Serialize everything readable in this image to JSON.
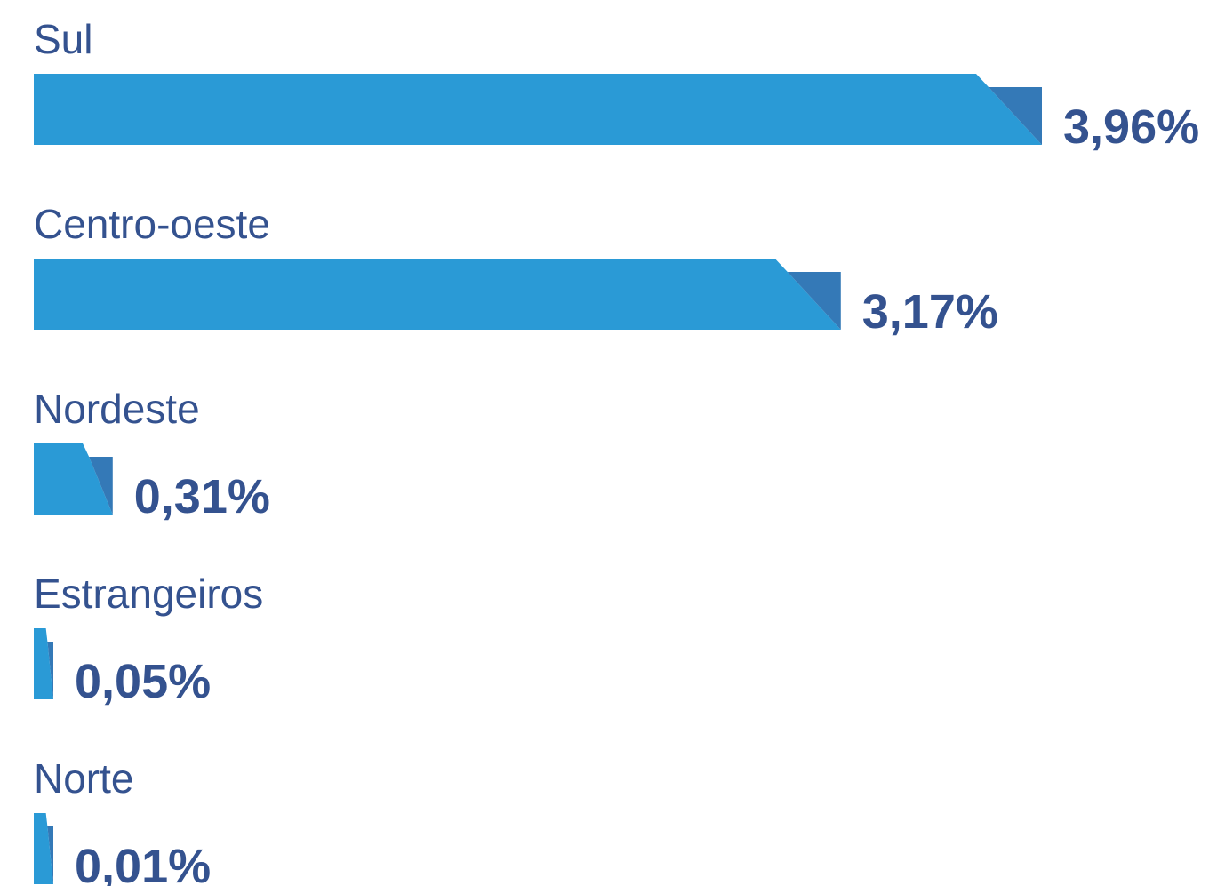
{
  "chart_data": {
    "type": "bar",
    "orientation": "horizontal",
    "categories": [
      "Sul",
      "Centro-oeste",
      "Nordeste",
      "Estrangeiros",
      "Norte"
    ],
    "values": [
      3.96,
      3.17,
      0.31,
      0.05,
      0.01
    ],
    "value_labels": [
      "3,96%",
      "3,17%",
      "0,31%",
      "0,05%",
      "0,01%"
    ],
    "color": "#2a9ad6",
    "fold_color": "#3479b7"
  }
}
